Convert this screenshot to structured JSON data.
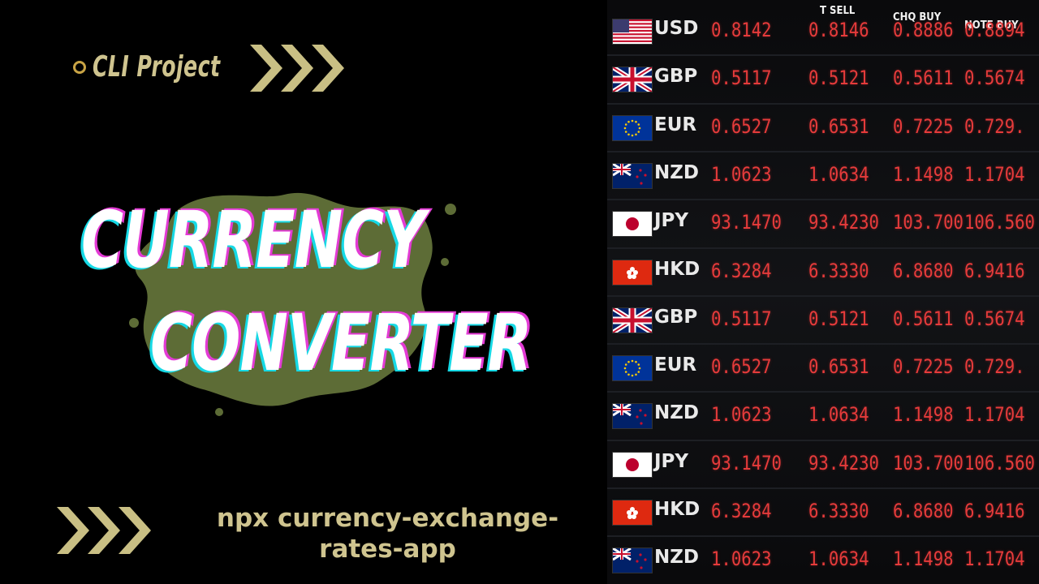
{
  "tag_label": "CLI Project",
  "title_line1": "CURRENCY",
  "title_line2": "CONVERTER",
  "command_line1": "npx currency-exchange-",
  "command_line2": "rates-app",
  "colors": {
    "gold": "#cfc48f",
    "ring": "#c9a445",
    "splat": "#5d6c36",
    "cyan_shadow": "#16d9e5",
    "magenta_shadow": "#e33bd5",
    "rate_red": "#e63b3b"
  },
  "board": {
    "headers": [
      "T SELL",
      "CHQ BUY",
      "NOTE BUY"
    ],
    "rows": [
      {
        "ccy": "USD",
        "flag": "us-flag",
        "vals": [
          "0.8142",
          "0.8146",
          "0.8886",
          "0.8894"
        ]
      },
      {
        "ccy": "GBP",
        "flag": "uk-flag",
        "vals": [
          "0.5117",
          "0.5121",
          "0.5611",
          "0.5674"
        ]
      },
      {
        "ccy": "EUR",
        "flag": "eu-flag",
        "vals": [
          "0.6527",
          "0.6531",
          "0.7225",
          "0.729."
        ]
      },
      {
        "ccy": "NZD",
        "flag": "nz-flag",
        "vals": [
          "1.0623",
          "1.0634",
          "1.1498",
          "1.1704"
        ]
      },
      {
        "ccy": "JPY",
        "flag": "jp-flag",
        "vals": [
          "93.1470",
          "93.4230",
          "103.700",
          "106.560"
        ]
      },
      {
        "ccy": "HKD",
        "flag": "hk-flag",
        "vals": [
          "6.3284",
          "6.3330",
          "6.8680",
          "6.9416"
        ]
      },
      {
        "ccy": "GBP",
        "flag": "uk-flag",
        "vals": [
          "0.5117",
          "0.5121",
          "0.5611",
          "0.5674"
        ]
      },
      {
        "ccy": "EUR",
        "flag": "eu-flag",
        "vals": [
          "0.6527",
          "0.6531",
          "0.7225",
          "0.729."
        ]
      },
      {
        "ccy": "NZD",
        "flag": "nz-flag",
        "vals": [
          "1.0623",
          "1.0634",
          "1.1498",
          "1.1704"
        ]
      },
      {
        "ccy": "JPY",
        "flag": "jp-flag",
        "vals": [
          "93.1470",
          "93.4230",
          "103.700",
          "106.560"
        ]
      },
      {
        "ccy": "HKD",
        "flag": "hk-flag",
        "vals": [
          "6.3284",
          "6.3330",
          "6.8680",
          "6.9416"
        ]
      },
      {
        "ccy": "NZD",
        "flag": "nz-flag",
        "vals": [
          "1.0623",
          "1.0634",
          "1.1498",
          "1.1704"
        ]
      }
    ]
  }
}
